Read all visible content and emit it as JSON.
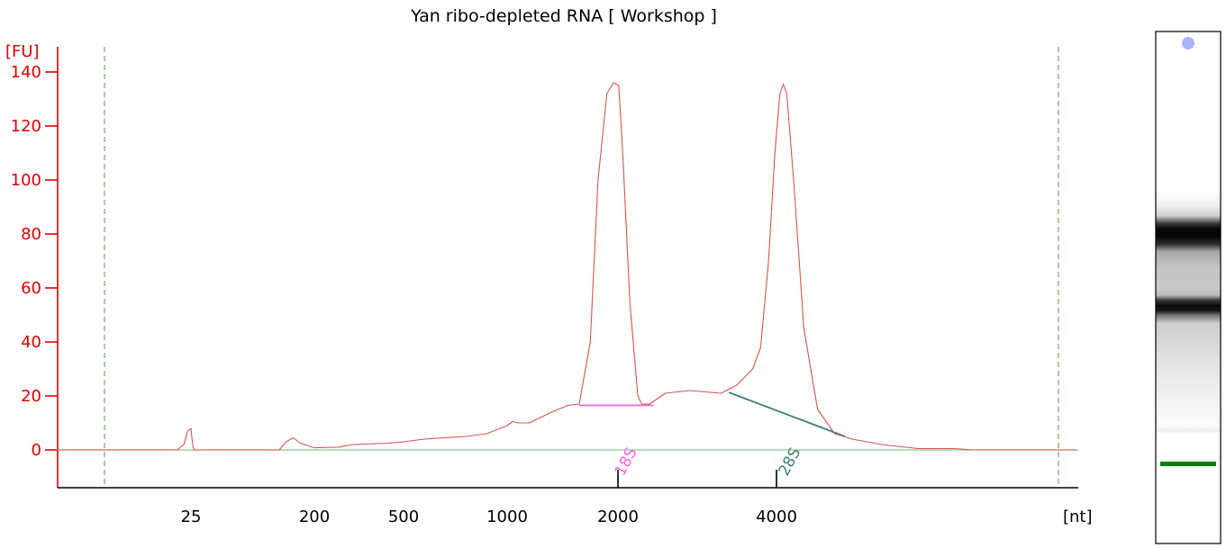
{
  "chart_data": {
    "type": "line",
    "title": "Yan ribo-depleted RNA  [ Workshop ]",
    "y_unit": "[FU]",
    "x_unit": "[nt]",
    "ylim": [
      -14,
      150
    ],
    "y_ticks": [
      0,
      20,
      40,
      60,
      80,
      100,
      120,
      140
    ],
    "x_ticks": [
      {
        "label": "25",
        "pos": 25
      },
      {
        "label": "200",
        "pos": 200
      },
      {
        "label": "500",
        "pos": 500
      },
      {
        "label": "1000",
        "pos": 1000
      },
      {
        "label": "2000",
        "pos": 2000
      },
      {
        "label": "4000",
        "pos": 4000
      }
    ],
    "x_marker_positions": [
      2000,
      4000
    ],
    "x_axis_anchors": [
      {
        "size": -20,
        "pos": 62
      },
      {
        "size": 0,
        "pos": 116
      },
      {
        "size": 25,
        "pos": 212
      },
      {
        "size": 200,
        "pos": 349
      },
      {
        "size": 500,
        "pos": 448
      },
      {
        "size": 1000,
        "pos": 563
      },
      {
        "size": 2000,
        "pos": 686
      },
      {
        "size": 4000,
        "pos": 862
      },
      {
        "size": 6000,
        "pos": 938
      },
      {
        "size": 9000,
        "pos": 1060
      },
      {
        "size": 12000,
        "pos": 1175
      },
      {
        "size": 13000,
        "pos": 1195
      }
    ],
    "boundary_markers": [
      0,
      12000
    ],
    "series": [
      {
        "color": "#d9534f",
        "points": [
          [
            -20,
            0
          ],
          [
            0,
            0
          ],
          [
            21,
            0
          ],
          [
            23,
            2
          ],
          [
            24,
            7
          ],
          [
            25,
            8
          ],
          [
            26,
            5
          ],
          [
            28,
            1
          ],
          [
            30,
            0
          ],
          [
            150,
            0
          ],
          [
            160,
            3
          ],
          [
            170,
            4.5
          ],
          [
            180,
            2.5
          ],
          [
            200,
            0.8
          ],
          [
            280,
            1
          ],
          [
            330,
            2
          ],
          [
            450,
            2.5
          ],
          [
            500,
            3
          ],
          [
            600,
            4
          ],
          [
            800,
            5
          ],
          [
            900,
            6
          ],
          [
            1000,
            9
          ],
          [
            1050,
            10.5
          ],
          [
            1100,
            10
          ],
          [
            1200,
            10
          ],
          [
            1400,
            14
          ],
          [
            1550,
            16.5
          ],
          [
            1650,
            17
          ],
          [
            1750,
            40
          ],
          [
            1820,
            100
          ],
          [
            1900,
            132
          ],
          [
            1960,
            136
          ],
          [
            2010,
            135
          ],
          [
            2060,
            110
          ],
          [
            2150,
            55
          ],
          [
            2250,
            20
          ],
          [
            2300,
            17
          ],
          [
            2400,
            17
          ],
          [
            2600,
            21
          ],
          [
            2900,
            22
          ],
          [
            3300,
            21
          ],
          [
            3500,
            24
          ],
          [
            3700,
            30
          ],
          [
            3800,
            38
          ],
          [
            3900,
            70
          ],
          [
            3980,
            110
          ],
          [
            4100,
            132
          ],
          [
            4200,
            135.5
          ],
          [
            4300,
            132
          ],
          [
            4500,
            100
          ],
          [
            4800,
            45
          ],
          [
            5200,
            15
          ],
          [
            5700,
            6
          ],
          [
            6200,
            4
          ],
          [
            7000,
            2
          ],
          [
            8000,
            0.5
          ],
          [
            9000,
            0.5
          ],
          [
            9500,
            0
          ],
          [
            12000,
            0
          ],
          [
            13000,
            0
          ]
        ]
      }
    ],
    "peaks": [
      {
        "label": "18S",
        "pos": 2000,
        "color": "#ee66dd"
      },
      {
        "label": "28S",
        "pos": 4150,
        "color": "#3f7f7f"
      }
    ],
    "baselines": [
      {
        "color": "#ee66dd",
        "from": [
          1650,
          16.5
        ],
        "to": [
          2450,
          16.5
        ]
      },
      {
        "color": "#3f7f7f",
        "from": [
          3400,
          21.3
        ],
        "to": [
          6000,
          5
        ]
      }
    ],
    "colors": {
      "axis_y": "#e00000",
      "zero_line": "#8dc88d",
      "boundary": "#5a9a5a",
      "trace": "#d9534f"
    }
  },
  "gel": {
    "marker_color": "#008000",
    "dot_color": "#aab4ff",
    "bands": [
      {
        "level": 0.28,
        "intensity": 1.0
      },
      {
        "level": 0.52,
        "intensity": 0.95
      }
    ]
  }
}
